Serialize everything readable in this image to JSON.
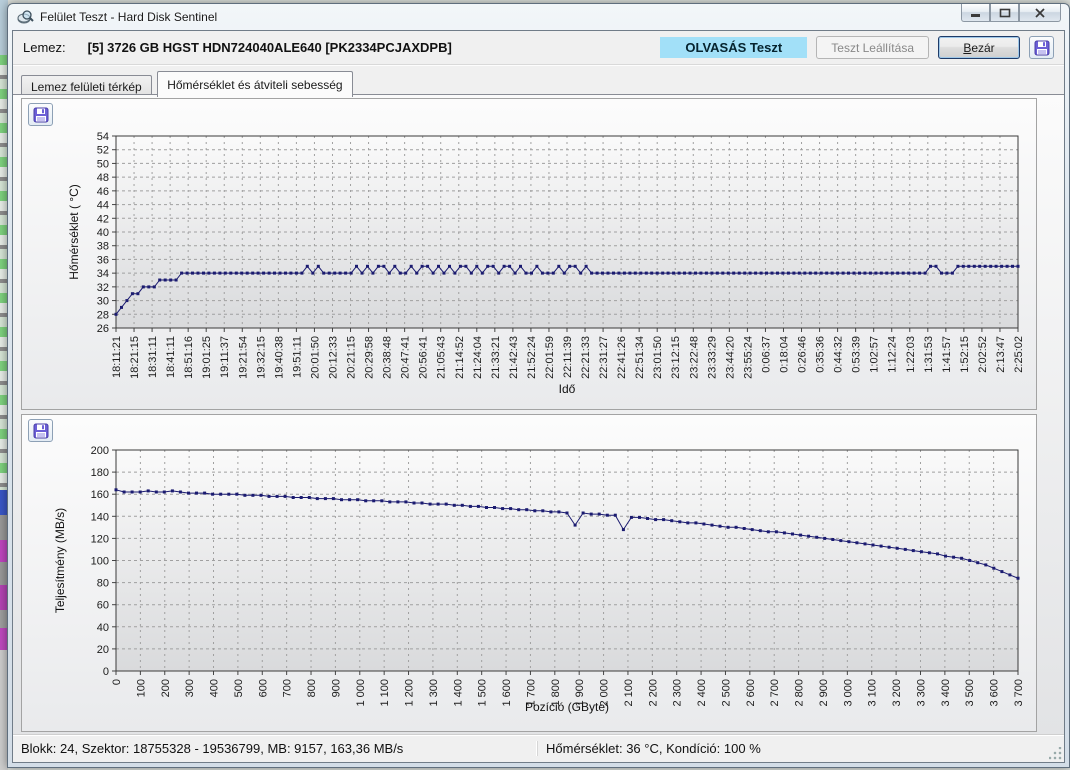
{
  "window": {
    "title": "Felület Teszt - Hard Disk Sentinel"
  },
  "toolbar": {
    "disk_label": "Lemez:",
    "disk_value": "[5] 3726 GB  HGST HDN724040ALE640 [PK2334PCJAXDPB]",
    "test_badge": "OLVASÁS Teszt",
    "stop_button": "Teszt Leállítása",
    "close_button": "Bezár"
  },
  "tabs": [
    {
      "label": "Lemez felületi térkép",
      "active": false
    },
    {
      "label": "Hőmérséklet és átviteli sebesség",
      "active": true
    }
  ],
  "statusbar": {
    "left": "Blokk: 24, Szektor: 18755328 - 19536799, MB: 9157, 163,36 MB/s",
    "right": "Hőmérséklet: 36 °C,  Kondíció: 100 %"
  },
  "colors": {
    "series": "#1b1b70",
    "badge_bg": "#a2e0f8",
    "grid": "#a0a0a0"
  },
  "chart_data": [
    {
      "type": "line",
      "title": "",
      "xlabel": "Idő",
      "ylabel": "Hőmérséklet ( °C)",
      "ylim": [
        26,
        54
      ],
      "ytick_step": 2,
      "grid": true,
      "legend_position": "none",
      "marker": "square",
      "x_tick_labels": [
        "18:11:21",
        "18:21:15",
        "18:31:11",
        "18:41:11",
        "18:51:16",
        "19:01:25",
        "19:11:37",
        "19:21:54",
        "19:32:15",
        "19:40:38",
        "19:51:11",
        "20:01:50",
        "20:12:33",
        "20:21:15",
        "20:29:58",
        "20:38:48",
        "20:47:41",
        "20:56:41",
        "21:05:43",
        "21:14:52",
        "21:24:04",
        "21:33:21",
        "21:42:43",
        "21:52:24",
        "22:01:59",
        "22:11:39",
        "22:21:33",
        "22:31:27",
        "22:41:26",
        "22:51:34",
        "23:01:50",
        "23:12:15",
        "23:22:48",
        "23:33:29",
        "23:44:20",
        "23:55:24",
        "0:06:37",
        "0:18:04",
        "0:26:46",
        "0:35:36",
        "0:44:32",
        "0:53:39",
        "1:02:57",
        "1:12:24",
        "1:22:03",
        "1:31:53",
        "1:41:57",
        "1:52:15",
        "2:02:52",
        "2:13:47",
        "2:25:02"
      ],
      "series": [
        {
          "name": "Hőmérséklet",
          "values": [
            28,
            29,
            30,
            31,
            31,
            32,
            32,
            32,
            33,
            33,
            33,
            33,
            34,
            34,
            34,
            34,
            34,
            34,
            34,
            34,
            34,
            34,
            34,
            34,
            34,
            34,
            34,
            34,
            34,
            34,
            34,
            34,
            34,
            34,
            34,
            35,
            34,
            35,
            34,
            34,
            34,
            34,
            34,
            34,
            35,
            34,
            35,
            34,
            35,
            35,
            34,
            35,
            34,
            34,
            35,
            34,
            35,
            35,
            34,
            35,
            34,
            35,
            34,
            35,
            35,
            34,
            35,
            34,
            35,
            35,
            34,
            35,
            35,
            34,
            35,
            34,
            34,
            35,
            34,
            34,
            34,
            35,
            34,
            35,
            35,
            34,
            35,
            34,
            34,
            34,
            34,
            34,
            34,
            34,
            34,
            34,
            34,
            34,
            34,
            34,
            34,
            34,
            34,
            34,
            34,
            34,
            34,
            34,
            34,
            34,
            34,
            34,
            34,
            34,
            34,
            34,
            34,
            34,
            34,
            34,
            34,
            34,
            34,
            34,
            34,
            34,
            34,
            34,
            34,
            34,
            34,
            34,
            34,
            34,
            34,
            34,
            34,
            34,
            34,
            34,
            34,
            34,
            34,
            34,
            34,
            34,
            34,
            34,
            34,
            35,
            35,
            34,
            34,
            34,
            35,
            35,
            35,
            35,
            35,
            35,
            35,
            35,
            35,
            35,
            35,
            35
          ]
        }
      ]
    },
    {
      "type": "line",
      "title": "",
      "xlabel": "Pozíció (GByte)",
      "ylabel": "Teljesítmény (MB/s)",
      "ylim": [
        0,
        200
      ],
      "ytick_step": 20,
      "xlim": [
        0,
        3700
      ],
      "grid": true,
      "legend_position": "none",
      "marker": "square",
      "x_tick_labels": [
        "0",
        "100",
        "200",
        "300",
        "400",
        "500",
        "600",
        "700",
        "800",
        "900",
        "1 000",
        "1 100",
        "1 200",
        "1 300",
        "1 400",
        "1 500",
        "1 600",
        "1 700",
        "1 800",
        "1 900",
        "2 000",
        "2 100",
        "2 200",
        "2 300",
        "2 400",
        "2 500",
        "2 600",
        "2 700",
        "2 800",
        "2 900",
        "3 000",
        "3 100",
        "3 200",
        "3 300",
        "3 400",
        "3 500",
        "3 600",
        "3 700"
      ],
      "series": [
        {
          "name": "Teljesítmény",
          "values": [
            164,
            162,
            162,
            162,
            163,
            162,
            162,
            163,
            162,
            161,
            161,
            161,
            160,
            160,
            160,
            160,
            159,
            159,
            159,
            158,
            158,
            158,
            157,
            157,
            157,
            156,
            156,
            156,
            155,
            155,
            155,
            154,
            154,
            154,
            153,
            153,
            153,
            152,
            152,
            151,
            151,
            151,
            150,
            150,
            149,
            149,
            148,
            148,
            147,
            147,
            146,
            146,
            145,
            145,
            144,
            144,
            143,
            132,
            143,
            142,
            142,
            141,
            141,
            128,
            139,
            139,
            138,
            137,
            137,
            136,
            135,
            134,
            134,
            133,
            132,
            131,
            130,
            130,
            129,
            128,
            127,
            126,
            126,
            125,
            124,
            123,
            122,
            121,
            120,
            119,
            118,
            117,
            116,
            115,
            114,
            113,
            112,
            111,
            110,
            109,
            108,
            107,
            106,
            104,
            103,
            102,
            100,
            98,
            96,
            93,
            90,
            87,
            84
          ]
        }
      ]
    }
  ]
}
